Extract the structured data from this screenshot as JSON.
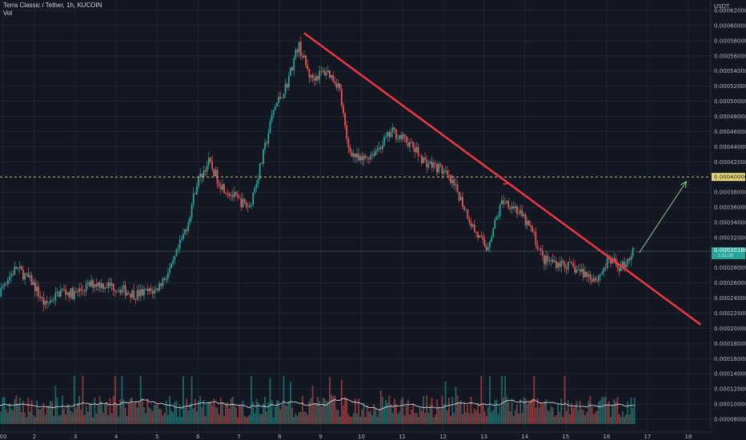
{
  "header": {
    "symbol_line": "Terra Classic / Tether, 1h, KUCOIN",
    "volume_label": "Vol"
  },
  "price_axis": {
    "unit": "USDT",
    "ticks": [
      "0.00062000",
      "0.00060000",
      "0.00058000",
      "0.00056000",
      "0.00054000",
      "0.00052000",
      "0.00050000",
      "0.00048000",
      "0.00046000",
      "0.00044000",
      "0.00042000",
      "0.00038000",
      "0.00036000",
      "0.00034000",
      "0.00032000",
      "0.00028000",
      "0.00026000",
      "0.00024000",
      "0.00022000",
      "0.00020000",
      "0.00018000",
      "0.00016000",
      "0.00014000",
      "0.00012000",
      "0.00010000",
      "0.00008000"
    ],
    "target_label": "0.00040000",
    "last_price_label": "0.00030186",
    "last_price_sub": "1:11:20"
  },
  "time_axis": {
    "labels": [
      "00",
      "2",
      "3",
      "4",
      "5",
      "6",
      "7",
      "8",
      "9",
      "10",
      "11",
      "12",
      "13",
      "14",
      "15",
      "16",
      "17",
      "18"
    ]
  },
  "colors": {
    "background": "#131722",
    "up": "#26a69a",
    "down": "#ef5350",
    "trendline": "#f23645",
    "arrow": "#81c995",
    "target_line": "#e6d87a",
    "grid": "#1f2433"
  },
  "chart_data": {
    "type": "candlestick",
    "pair": "LUNC/USDT",
    "timeframe": "1h",
    "exchange": "KUCOIN",
    "ylim": [
      0.0002,
      0.00062
    ],
    "price_path": [
      [
        1.0,
        0.00022
      ],
      [
        1.3,
        0.00026
      ],
      [
        1.6,
        0.00028
      ],
      [
        2.0,
        0.00026
      ],
      [
        2.3,
        0.00023
      ],
      [
        2.7,
        0.00025
      ],
      [
        3.0,
        0.000245
      ],
      [
        3.5,
        0.00026
      ],
      [
        4.0,
        0.000255
      ],
      [
        4.5,
        0.000245
      ],
      [
        5.0,
        0.00025
      ],
      [
        5.4,
        0.00028
      ],
      [
        5.8,
        0.00034
      ],
      [
        6.0,
        0.00039
      ],
      [
        6.3,
        0.00042
      ],
      [
        6.6,
        0.00039
      ],
      [
        7.0,
        0.00037
      ],
      [
        7.3,
        0.00036
      ],
      [
        7.6,
        0.00042
      ],
      [
        7.9,
        0.00049
      ],
      [
        8.2,
        0.00052
      ],
      [
        8.5,
        0.000575
      ],
      [
        8.8,
        0.00053
      ],
      [
        9.2,
        0.00054
      ],
      [
        9.5,
        0.00052
      ],
      [
        9.7,
        0.00044
      ],
      [
        10.0,
        0.00042
      ],
      [
        10.4,
        0.000435
      ],
      [
        10.8,
        0.00046
      ],
      [
        11.2,
        0.000445
      ],
      [
        11.6,
        0.00042
      ],
      [
        12.0,
        0.00041
      ],
      [
        12.4,
        0.00038
      ],
      [
        12.8,
        0.00033
      ],
      [
        13.1,
        0.000305
      ],
      [
        13.5,
        0.00037
      ],
      [
        13.8,
        0.00036
      ],
      [
        14.2,
        0.00033
      ],
      [
        14.5,
        0.00029
      ],
      [
        15.0,
        0.000285
      ],
      [
        15.4,
        0.000275
      ],
      [
        15.8,
        0.000265
      ],
      [
        16.1,
        0.00029
      ],
      [
        16.4,
        0.00028
      ],
      [
        16.7,
        0.00030186
      ]
    ],
    "trendline": {
      "from": [
        8.6,
        0.00059
      ],
      "to": [
        18.3,
        0.000205
      ]
    },
    "projection_arrow": {
      "from": [
        16.8,
        0.0003
      ],
      "to": [
        17.95,
        0.000394
      ]
    },
    "target_level": 0.0004,
    "last_price": 0.00030186
  }
}
